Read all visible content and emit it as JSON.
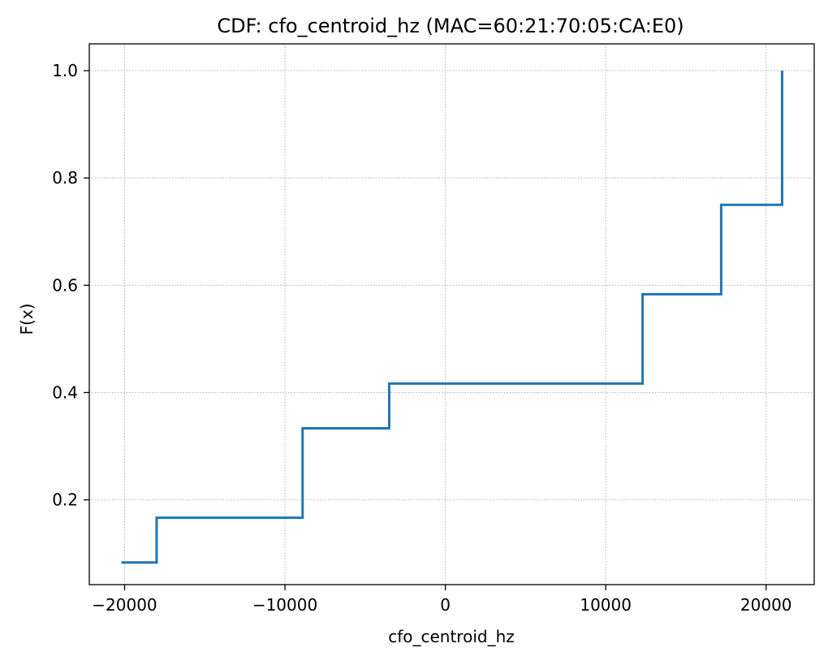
{
  "chart_data": {
    "type": "line",
    "step": true,
    "title": "CDF: cfo_centroid_hz (MAC=60:21:70:05:CA:E0)",
    "xlabel": "cfo_centroid_hz",
    "ylabel": "F(x)",
    "xlim": [
      -22200,
      23000
    ],
    "ylim": [
      0.042,
      1.05
    ],
    "xticks": [
      -20000,
      -10000,
      0,
      10000,
      20000
    ],
    "xtick_labels": [
      "−20000",
      "−10000",
      "0",
      "10000",
      "20000"
    ],
    "yticks": [
      0.2,
      0.4,
      0.6,
      0.8,
      1.0
    ],
    "ytick_labels": [
      "0.2",
      "0.4",
      "0.6",
      "0.8",
      "1.0"
    ],
    "grid": true,
    "legend": false,
    "series": [
      {
        "color": "#1f77b4",
        "x": [
          -20200,
          -18000,
          -8900,
          -3500,
          12300,
          17200,
          21000
        ],
        "y": [
          0.0833,
          0.1667,
          0.3333,
          0.4167,
          0.5833,
          0.75,
          0.9167
        ],
        "final_y": 1.0
      }
    ]
  }
}
